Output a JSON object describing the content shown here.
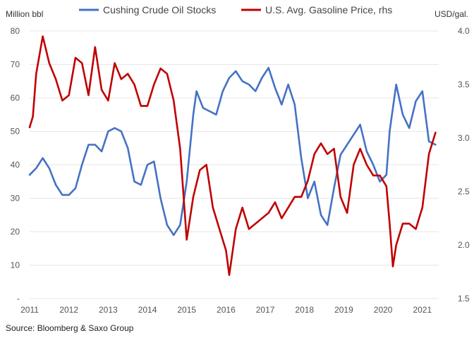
{
  "source_note": "Source: Bloomberg & Saxo Group",
  "chart_data": {
    "type": "line",
    "title": "",
    "xlabel": "",
    "x_ticks": [
      "2011",
      "2012",
      "2013",
      "2014",
      "2015",
      "2016",
      "2017",
      "2018",
      "2019",
      "2020",
      "2021"
    ],
    "xlim": [
      "2011-01",
      "2021-06"
    ],
    "left_axis": {
      "label": "Million bbl",
      "range": [
        0,
        80
      ],
      "ticks": [
        "-",
        "10",
        "20",
        "30",
        "40",
        "50",
        "60",
        "70",
        "80"
      ]
    },
    "right_axis": {
      "label": "USD/gal.",
      "range": [
        1.5,
        4.0
      ],
      "ticks": [
        "1.5",
        "2.0",
        "2.5",
        "3.0",
        "3.5",
        "4.0"
      ]
    },
    "grid": "horizontal",
    "legend": "top",
    "series": [
      {
        "name": "Cushing Crude Oil Stocks",
        "axis": "left",
        "color": "#4472c4",
        "points": [
          [
            "2011-01",
            37
          ],
          [
            "2011-03",
            39
          ],
          [
            "2011-05",
            42
          ],
          [
            "2011-07",
            39
          ],
          [
            "2011-09",
            34
          ],
          [
            "2011-11",
            31
          ],
          [
            "2012-01",
            31
          ],
          [
            "2012-03",
            33
          ],
          [
            "2012-05",
            40
          ],
          [
            "2012-07",
            46
          ],
          [
            "2012-09",
            46
          ],
          [
            "2012-11",
            44
          ],
          [
            "2013-01",
            50
          ],
          [
            "2013-03",
            51
          ],
          [
            "2013-05",
            50
          ],
          [
            "2013-07",
            45
          ],
          [
            "2013-09",
            35
          ],
          [
            "2013-11",
            34
          ],
          [
            "2014-01",
            40
          ],
          [
            "2014-03",
            41
          ],
          [
            "2014-05",
            30
          ],
          [
            "2014-07",
            22
          ],
          [
            "2014-09",
            19
          ],
          [
            "2014-11",
            22
          ],
          [
            "2015-01",
            35
          ],
          [
            "2015-03",
            55
          ],
          [
            "2015-04",
            62
          ],
          [
            "2015-06",
            57
          ],
          [
            "2015-08",
            56
          ],
          [
            "2015-10",
            55
          ],
          [
            "2015-12",
            62
          ],
          [
            "2016-02",
            66
          ],
          [
            "2016-04",
            68
          ],
          [
            "2016-06",
            65
          ],
          [
            "2016-08",
            64
          ],
          [
            "2016-10",
            62
          ],
          [
            "2016-12",
            66
          ],
          [
            "2017-02",
            69
          ],
          [
            "2017-04",
            63
          ],
          [
            "2017-06",
            58
          ],
          [
            "2017-08",
            64
          ],
          [
            "2017-10",
            58
          ],
          [
            "2017-12",
            42
          ],
          [
            "2018-02",
            30
          ],
          [
            "2018-04",
            35
          ],
          [
            "2018-06",
            25
          ],
          [
            "2018-08",
            22
          ],
          [
            "2018-10",
            33
          ],
          [
            "2018-12",
            43
          ],
          [
            "2019-02",
            46
          ],
          [
            "2019-04",
            49
          ],
          [
            "2019-06",
            52
          ],
          [
            "2019-08",
            44
          ],
          [
            "2019-10",
            40
          ],
          [
            "2019-12",
            35
          ],
          [
            "2020-02",
            37
          ],
          [
            "2020-03",
            50
          ],
          [
            "2020-05",
            64
          ],
          [
            "2020-07",
            55
          ],
          [
            "2020-09",
            51
          ],
          [
            "2020-11",
            59
          ],
          [
            "2021-01",
            62
          ],
          [
            "2021-03",
            47
          ],
          [
            "2021-05",
            46
          ]
        ]
      },
      {
        "name": "U.S. Avg. Gasoline Price, rhs",
        "axis": "right",
        "color": "#c00000",
        "points": [
          [
            "2011-01",
            3.1
          ],
          [
            "2011-02",
            3.2
          ],
          [
            "2011-03",
            3.6
          ],
          [
            "2011-05",
            3.95
          ],
          [
            "2011-07",
            3.7
          ],
          [
            "2011-09",
            3.55
          ],
          [
            "2011-11",
            3.35
          ],
          [
            "2012-01",
            3.4
          ],
          [
            "2012-03",
            3.75
          ],
          [
            "2012-05",
            3.7
          ],
          [
            "2012-07",
            3.4
          ],
          [
            "2012-09",
            3.85
          ],
          [
            "2012-11",
            3.45
          ],
          [
            "2013-01",
            3.35
          ],
          [
            "2013-03",
            3.7
          ],
          [
            "2013-05",
            3.55
          ],
          [
            "2013-07",
            3.6
          ],
          [
            "2013-09",
            3.5
          ],
          [
            "2013-11",
            3.3
          ],
          [
            "2014-01",
            3.3
          ],
          [
            "2014-03",
            3.5
          ],
          [
            "2014-05",
            3.65
          ],
          [
            "2014-07",
            3.6
          ],
          [
            "2014-09",
            3.35
          ],
          [
            "2014-11",
            2.9
          ],
          [
            "2015-01",
            2.05
          ],
          [
            "2015-03",
            2.45
          ],
          [
            "2015-05",
            2.7
          ],
          [
            "2015-07",
            2.75
          ],
          [
            "2015-09",
            2.35
          ],
          [
            "2015-11",
            2.15
          ],
          [
            "2016-01",
            1.95
          ],
          [
            "2016-02",
            1.72
          ],
          [
            "2016-04",
            2.15
          ],
          [
            "2016-06",
            2.35
          ],
          [
            "2016-08",
            2.15
          ],
          [
            "2016-10",
            2.2
          ],
          [
            "2016-12",
            2.25
          ],
          [
            "2017-02",
            2.3
          ],
          [
            "2017-04",
            2.4
          ],
          [
            "2017-06",
            2.25
          ],
          [
            "2017-08",
            2.35
          ],
          [
            "2017-10",
            2.45
          ],
          [
            "2017-12",
            2.45
          ],
          [
            "2018-02",
            2.6
          ],
          [
            "2018-04",
            2.85
          ],
          [
            "2018-06",
            2.95
          ],
          [
            "2018-08",
            2.85
          ],
          [
            "2018-10",
            2.9
          ],
          [
            "2018-12",
            2.45
          ],
          [
            "2019-02",
            2.3
          ],
          [
            "2019-04",
            2.75
          ],
          [
            "2019-06",
            2.9
          ],
          [
            "2019-08",
            2.75
          ],
          [
            "2019-10",
            2.65
          ],
          [
            "2019-12",
            2.65
          ],
          [
            "2020-02",
            2.55
          ],
          [
            "2020-03",
            2.2
          ],
          [
            "2020-04",
            1.8
          ],
          [
            "2020-05",
            2.0
          ],
          [
            "2020-07",
            2.2
          ],
          [
            "2020-09",
            2.2
          ],
          [
            "2020-11",
            2.15
          ],
          [
            "2021-01",
            2.35
          ],
          [
            "2021-03",
            2.85
          ],
          [
            "2021-05",
            3.05
          ]
        ]
      }
    ]
  }
}
